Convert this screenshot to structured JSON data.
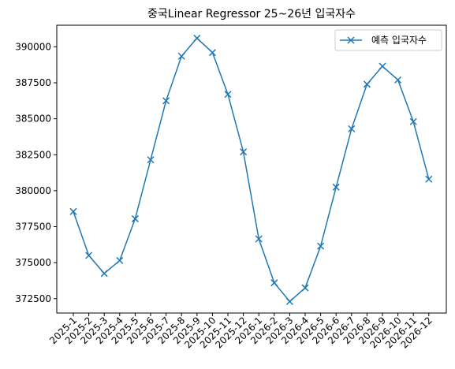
{
  "chart_data": {
    "type": "line",
    "title": "중국Linear Regressor 25~26년 입국자수",
    "xlabel": "",
    "ylabel": "",
    "categories": [
      "2025-1",
      "2025-2",
      "2025-3",
      "2025-4",
      "2025-5",
      "2025-6",
      "2025-7",
      "2025-8",
      "2025-9",
      "2025-10",
      "2025-11",
      "2025-12",
      "2026-1",
      "2026-2",
      "2026-3",
      "2026-4",
      "2026-5",
      "2026-6",
      "2026-7",
      "2026-8",
      "2026-9",
      "2026-10",
      "2026-11",
      "2026-12"
    ],
    "series": [
      {
        "name": "예측 입국자수",
        "color": "#1f77b4",
        "marker": "x",
        "values": [
          378550,
          375500,
          374250,
          375150,
          378050,
          382150,
          386250,
          389350,
          390600,
          389600,
          386700,
          382700,
          376650,
          373600,
          372300,
          373250,
          376150,
          380250,
          384300,
          387400,
          388650,
          387700,
          384800,
          380800
        ]
      }
    ],
    "ylim": [
      371500,
      391500
    ],
    "yticks": [
      372500,
      375000,
      377500,
      380000,
      382500,
      385000,
      387500,
      390000
    ],
    "ytick_labels": [
      "372500",
      "375000",
      "377500",
      "380000",
      "382500",
      "385000",
      "387500",
      "390000"
    ],
    "xtick_rotation": 45,
    "grid": false,
    "legend": {
      "placement": "top-right"
    }
  }
}
